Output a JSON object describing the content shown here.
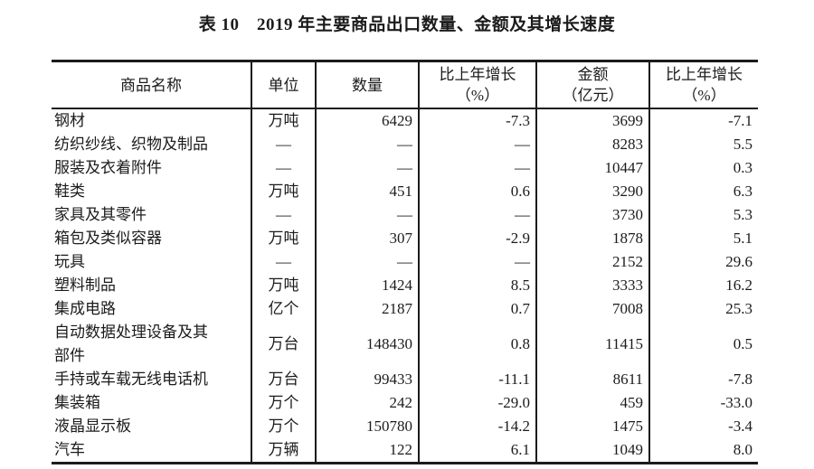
{
  "title": "表 10　2019 年主要商品出口数量、金额及其增长速度",
  "colors": {
    "text": "#1b1b1b",
    "border": "#1b1b1b",
    "background": "#ffffff"
  },
  "table": {
    "headers": [
      {
        "line1": "商品名称",
        "line2": ""
      },
      {
        "line1": "单位",
        "line2": ""
      },
      {
        "line1": "数量",
        "line2": ""
      },
      {
        "line1": "比上年增长",
        "line2": "（%）"
      },
      {
        "line1": "金额",
        "line2": "（亿元）"
      },
      {
        "line1": "比上年增长",
        "line2": "（%）"
      }
    ],
    "rows": [
      {
        "name": "钢材",
        "unit": "万吨",
        "qty": "6429",
        "qty_growth": "-7.3",
        "amount": "3699",
        "amount_growth": "-7.1"
      },
      {
        "name": "纺织纱线、织物及制品",
        "unit": "—",
        "qty": "—",
        "qty_growth": "—",
        "amount": "8283",
        "amount_growth": "5.5"
      },
      {
        "name": "服装及衣着附件",
        "unit": "—",
        "qty": "—",
        "qty_growth": "—",
        "amount": "10447",
        "amount_growth": "0.3"
      },
      {
        "name": "鞋类",
        "unit": "万吨",
        "qty": "451",
        "qty_growth": "0.6",
        "amount": "3290",
        "amount_growth": "6.3"
      },
      {
        "name": "家具及其零件",
        "unit": "—",
        "qty": "—",
        "qty_growth": "—",
        "amount": "3730",
        "amount_growth": "5.3"
      },
      {
        "name": "箱包及类似容器",
        "unit": "万吨",
        "qty": "307",
        "qty_growth": "-2.9",
        "amount": "1878",
        "amount_growth": "5.1"
      },
      {
        "name": "玩具",
        "unit": "—",
        "qty": "—",
        "qty_growth": "—",
        "amount": "2152",
        "amount_growth": "29.6"
      },
      {
        "name": "塑料制品",
        "unit": "万吨",
        "qty": "1424",
        "qty_growth": "8.5",
        "amount": "3333",
        "amount_growth": "16.2"
      },
      {
        "name": "集成电路",
        "unit": "亿个",
        "qty": "2187",
        "qty_growth": "0.7",
        "amount": "7008",
        "amount_growth": "25.3"
      },
      {
        "name": "自动数据处理设备及其\n部件",
        "unit": "万台",
        "qty": "148430",
        "qty_growth": "0.8",
        "amount": "11415",
        "amount_growth": "0.5"
      },
      {
        "name": "手持或车载无线电话机",
        "unit": "万台",
        "qty": "99433",
        "qty_growth": "-11.1",
        "amount": "8611",
        "amount_growth": "-7.8"
      },
      {
        "name": "集装箱",
        "unit": "万个",
        "qty": "242",
        "qty_growth": "-29.0",
        "amount": "459",
        "amount_growth": "-33.0"
      },
      {
        "name": "液晶显示板",
        "unit": "万个",
        "qty": "150780",
        "qty_growth": "-14.2",
        "amount": "1475",
        "amount_growth": "-3.4"
      },
      {
        "name": "汽车",
        "unit": "万辆",
        "qty": "122",
        "qty_growth": "6.1",
        "amount": "1049",
        "amount_growth": "8.0"
      }
    ]
  }
}
